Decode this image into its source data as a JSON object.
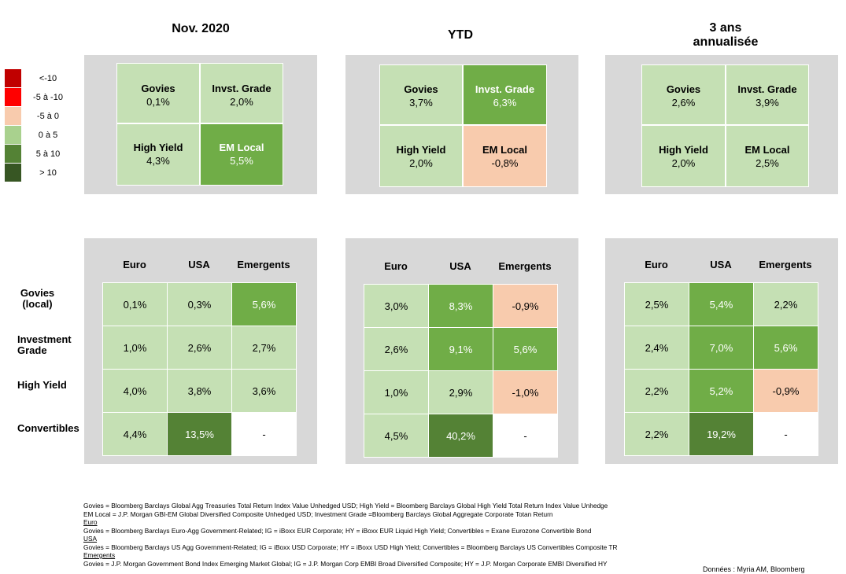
{
  "periods": [
    {
      "title": "Nov. 2020"
    },
    {
      "title": "YTD"
    },
    {
      "title_line1": "3 ans",
      "title_line2": "annualisée"
    }
  ],
  "legend": [
    {
      "label": "<-10",
      "color": "#c00000"
    },
    {
      "label": "-5 à -10",
      "color": "#ff0000"
    },
    {
      "label": "-5 à 0",
      "color": "#f8cbad"
    },
    {
      "label": "0 à 5",
      "color": "#c5e0b4"
    },
    {
      "label": "5 à 10",
      "color": "#548235"
    },
    {
      "label": "> 10",
      "color": "#375623"
    }
  ],
  "colors": {
    "light_green": "#c5e0b4",
    "mid_green": "#70ad47",
    "dark_green": "#548235",
    "salmon": "#f8cbad",
    "panel_grey": "#d8d8d8"
  },
  "chart_data": {
    "type": "table",
    "top_categories": [
      "Govies",
      "Invst. Grade",
      "High Yield",
      "EM Local"
    ],
    "top_values": [
      [
        "0,1%",
        "2,0%",
        "4,3%",
        "5,5%"
      ],
      [
        "3,7%",
        "6,3%",
        "2,0%",
        "-0,8%"
      ],
      [
        "2,6%",
        "3,9%",
        "2,0%",
        "2,5%"
      ]
    ],
    "bottom_columns": [
      "Euro",
      "USA",
      "Emergents"
    ],
    "bottom_rows": [
      "Govies (local)",
      "Investment Grade",
      "High Yield",
      "Convertibles"
    ],
    "bottom_values": [
      [
        [
          "0,1%",
          "0,3%",
          "5,6%"
        ],
        [
          "1,0%",
          "2,6%",
          "2,7%"
        ],
        [
          "4,0%",
          "3,8%",
          "3,6%"
        ],
        [
          "4,4%",
          "13,5%",
          "-"
        ]
      ],
      [
        [
          "3,0%",
          "8,3%",
          "-0,9%"
        ],
        [
          "2,6%",
          "9,1%",
          "5,6%"
        ],
        [
          "1,0%",
          "2,9%",
          "-1,0%"
        ],
        [
          "4,5%",
          "40,2%",
          "-"
        ]
      ],
      [
        [
          "2,5%",
          "5,4%",
          "2,2%"
        ],
        [
          "2,4%",
          "7,0%",
          "5,6%"
        ],
        [
          "2,2%",
          "5,2%",
          "-0,9%"
        ],
        [
          "2,2%",
          "19,2%",
          "-"
        ]
      ]
    ]
  },
  "row_labels": {
    "govies_line1": "Govies",
    "govies_line2": "(local)",
    "ig_line1": "Investment",
    "ig_line2": "Grade",
    "hy": "High Yield",
    "conv": "Convertibles"
  },
  "notes": [
    "Govies = Bloomberg Barclays Global Agg Treasuries Total Return Index Value Unhedged USD; High Yield = Bloomberg Barclays Global High Yield Total Return Index Value Unhedge",
    "EM Local = J.P. Morgan GBI-EM Global Diversified Composite Unhedged USD; Investment Grade =Bloomberg Barclays Global Aggregate Corporate Totan Return",
    "Euro",
    "Govies = Bloomberg Barclays Euro-Agg Government-Related; IG = iBoxx EUR Corporate; HY = iBoxx EUR Liquid High Yield; Convertibles = Exane Eurozone Convertible Bond",
    "USA",
    "Govies = Bloomberg Barclays US Agg Government-Related; IG = iBoxx USD Corporate; HY = iBoxx USD High Yield; Convertibles = Bloomberg Barclays US Convertibles Composite TR",
    "Emergents",
    "Govies = J.P. Morgan Government Bond Index Emerging Market Global; IG = J.P. Morgan Corp EMBI Broad Diversified Composite; HY = J.P. Morgan Corporate EMBI Diversified HY"
  ],
  "source": "Données : Myria AM, Bloomberg"
}
